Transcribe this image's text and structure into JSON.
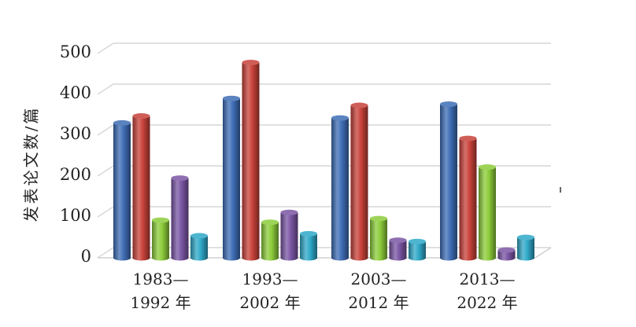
{
  "chart_data": {
    "type": "bar",
    "categories": [
      [
        "1983—",
        "1992 年"
      ],
      [
        "1993—",
        "2002 年"
      ],
      [
        "2003—",
        "2012 年"
      ],
      [
        "2013—",
        "2022 年"
      ]
    ],
    "series": [
      {
        "color": "#3e6db5",
        "values": [
          330,
          390,
          342,
          376
        ]
      },
      {
        "color": "#c8423a",
        "values": [
          347,
          478,
          373,
          292
        ]
      },
      {
        "color": "#8ccc3a",
        "values": [
          92,
          87,
          96,
          222
        ]
      },
      {
        "color": "#7a55a3",
        "values": [
          195,
          111,
          43,
          19
        ]
      },
      {
        "color": "#2fa8c8",
        "values": [
          54,
          59,
          40,
          50
        ]
      }
    ],
    "yticks": [
      "0",
      "100",
      "200",
      "300",
      "400",
      "500"
    ],
    "ylim": [
      0,
      500
    ],
    "ylabel": "发表论文数/篇",
    "xlabel": "",
    "title": "",
    "grid": true,
    "style": "3d-cylinder"
  }
}
